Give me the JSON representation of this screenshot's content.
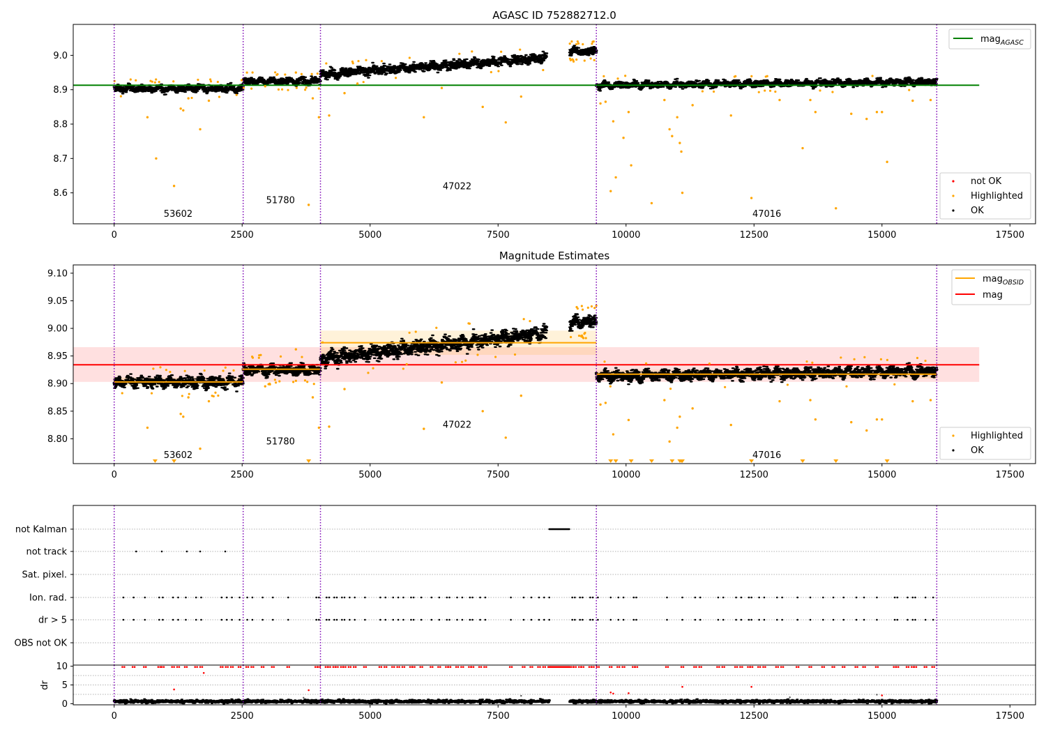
{
  "chart_data": [
    {
      "type": "scatter",
      "title": "AGASC ID 752882712.0",
      "xlim": [
        -800,
        18000
      ],
      "ylim": [
        8.51,
        9.09
      ],
      "x_ticks": [
        0,
        2500,
        5000,
        7500,
        10000,
        12500,
        15000,
        17500
      ],
      "y_ticks": [
        8.6,
        8.7,
        8.8,
        8.9,
        9.0
      ],
      "y_tick_labels": [
        "8.6",
        "8.7",
        "8.8",
        "8.9",
        "9.0"
      ],
      "obsid_boundaries": [
        0,
        2520,
        4030,
        9420,
        16070
      ],
      "obsid_labels": [
        {
          "x": 1250,
          "y": 8.53,
          "text": "53602"
        },
        {
          "x": 3250,
          "y": 8.57,
          "text": "51780"
        },
        {
          "x": 6700,
          "y": 8.61,
          "text": "47022"
        },
        {
          "x": 12750,
          "y": 8.53,
          "text": "47016"
        }
      ],
      "segments": [
        {
          "x0": 0,
          "x1": 2520,
          "mean": 8.903,
          "spread": 0.009
        },
        {
          "x0": 2520,
          "x1": 4030,
          "mean": 8.925,
          "spread": 0.009
        },
        {
          "x0": 4030,
          "x1": 8450,
          "mean_start": 8.945,
          "mean_end": 8.992,
          "spread": 0.012
        },
        {
          "x0": 8900,
          "x1": 9420,
          "mean": 9.012,
          "spread": 0.01
        },
        {
          "x0": 9420,
          "x1": 16070,
          "mean_start": 8.913,
          "mean_end": 8.923,
          "spread": 0.009
        }
      ],
      "hlines": [
        {
          "y": 8.913,
          "x0": -800,
          "x1": 16900,
          "color": "#008000",
          "legend": "mag",
          "legend_sub": "AGASC"
        }
      ],
      "highlighted_outliers": [
        [
          650,
          8.82
        ],
        [
          820,
          8.7
        ],
        [
          1170,
          8.62
        ],
        [
          1300,
          8.845
        ],
        [
          1350,
          8.84
        ],
        [
          1450,
          8.875
        ],
        [
          1680,
          8.785
        ],
        [
          1850,
          8.868
        ],
        [
          2950,
          8.91
        ],
        [
          3550,
          8.95
        ],
        [
          3800,
          8.565
        ],
        [
          3880,
          8.875
        ],
        [
          4000,
          8.82
        ],
        [
          4200,
          8.825
        ],
        [
          4500,
          8.89
        ],
        [
          6050,
          8.82
        ],
        [
          6400,
          8.905
        ],
        [
          7200,
          8.85
        ],
        [
          7650,
          8.805
        ],
        [
          7950,
          8.88
        ],
        [
          9500,
          8.86
        ],
        [
          9600,
          8.865
        ],
        [
          9700,
          8.605
        ],
        [
          9750,
          8.808
        ],
        [
          9800,
          8.645
        ],
        [
          9950,
          8.76
        ],
        [
          10050,
          8.835
        ],
        [
          10100,
          8.68
        ],
        [
          10500,
          8.57
        ],
        [
          10750,
          8.87
        ],
        [
          10850,
          8.785
        ],
        [
          10900,
          8.765
        ],
        [
          11000,
          8.82
        ],
        [
          11050,
          8.745
        ],
        [
          11080,
          8.72
        ],
        [
          11100,
          8.6
        ],
        [
          11300,
          8.855
        ],
        [
          12050,
          8.825
        ],
        [
          12450,
          8.585
        ],
        [
          13000,
          8.87
        ],
        [
          13450,
          8.73
        ],
        [
          13600,
          8.87
        ],
        [
          13700,
          8.835
        ],
        [
          14100,
          8.555
        ],
        [
          14400,
          8.83
        ],
        [
          14700,
          8.815
        ],
        [
          14900,
          8.835
        ],
        [
          15000,
          8.835
        ],
        [
          15100,
          8.69
        ],
        [
          15600,
          8.868
        ],
        [
          15950,
          8.87
        ]
      ],
      "legends": [
        {
          "entries": [
            {
              "label": "mag",
              "sub": "AGASC",
              "color": "#008000",
              "kind": "line"
            }
          ],
          "loc": "upper right"
        },
        {
          "entries": [
            {
              "label": "not OK",
              "color": "#ff0000",
              "kind": "dot"
            },
            {
              "label": "Highlighted",
              "color": "#ffa500",
              "kind": "dot"
            },
            {
              "label": "OK",
              "color": "#000000",
              "kind": "dot"
            }
          ],
          "loc": "lower right"
        }
      ]
    },
    {
      "type": "scatter",
      "title": "Magnitude Estimates",
      "xlim": [
        -800,
        18000
      ],
      "ylim": [
        8.755,
        9.115
      ],
      "x_ticks": [
        0,
        2500,
        5000,
        7500,
        10000,
        12500,
        15000,
        17500
      ],
      "y_ticks": [
        8.8,
        8.85,
        8.9,
        8.95,
        9.0,
        9.05,
        9.1
      ],
      "y_tick_labels": [
        "8.80",
        "8.85",
        "8.90",
        "8.95",
        "9.00",
        "9.05",
        "9.10"
      ],
      "obsid_boundaries": [
        0,
        2520,
        4030,
        9420,
        16070
      ],
      "obsid_labels": [
        {
          "x": 1250,
          "y": 8.765,
          "text": "53602"
        },
        {
          "x": 3250,
          "y": 8.79,
          "text": "51780"
        },
        {
          "x": 6700,
          "y": 8.82,
          "text": "47022"
        },
        {
          "x": 12750,
          "y": 8.765,
          "text": "47016"
        }
      ],
      "segments": [
        {
          "x0": 0,
          "x1": 2520,
          "mean": 8.903,
          "spread": 0.009
        },
        {
          "x0": 2520,
          "x1": 4030,
          "mean": 8.925,
          "spread": 0.009
        },
        {
          "x0": 4030,
          "x1": 8450,
          "mean_start": 8.945,
          "mean_end": 8.992,
          "spread": 0.012
        },
        {
          "x0": 8900,
          "x1": 9420,
          "mean": 9.012,
          "spread": 0.01
        },
        {
          "x0": 9420,
          "x1": 16070,
          "mean_start": 8.913,
          "mean_end": 8.923,
          "spread": 0.009
        }
      ],
      "mag_line": {
        "y": 8.934,
        "band": [
          8.903,
          8.966
        ],
        "x0": -800,
        "x1": 16900,
        "color": "#ff0000"
      },
      "obsid_means": [
        {
          "x0": 0,
          "x1": 2520,
          "y": 8.903,
          "band": [
            8.895,
            8.911
          ]
        },
        {
          "x0": 2520,
          "x1": 4030,
          "y": 8.926,
          "band": [
            8.918,
            8.934
          ]
        },
        {
          "x0": 4030,
          "x1": 9420,
          "y": 8.974,
          "band": [
            8.952,
            8.996
          ]
        },
        {
          "x0": 9420,
          "x1": 16070,
          "y": 8.917,
          "band": [
            8.909,
            8.925
          ]
        }
      ],
      "highlighted_outliers": [
        [
          650,
          8.82
        ],
        [
          1300,
          8.845
        ],
        [
          1350,
          8.84
        ],
        [
          1450,
          8.875
        ],
        [
          1680,
          8.782
        ],
        [
          1850,
          8.868
        ],
        [
          2950,
          8.895
        ],
        [
          3550,
          8.962
        ],
        [
          3880,
          8.875
        ],
        [
          4000,
          8.82
        ],
        [
          4200,
          8.822
        ],
        [
          4500,
          8.89
        ],
        [
          6050,
          8.818
        ],
        [
          6400,
          8.902
        ],
        [
          7200,
          8.85
        ],
        [
          7650,
          8.802
        ],
        [
          7950,
          8.878
        ],
        [
          9500,
          8.862
        ],
        [
          9600,
          8.865
        ],
        [
          9750,
          8.808
        ],
        [
          10050,
          8.834
        ],
        [
          10750,
          8.87
        ],
        [
          10850,
          8.795
        ],
        [
          11000,
          8.82
        ],
        [
          11050,
          8.84
        ],
        [
          11300,
          8.855
        ],
        [
          12050,
          8.825
        ],
        [
          13000,
          8.868
        ],
        [
          13600,
          8.87
        ],
        [
          13700,
          8.835
        ],
        [
          14400,
          8.83
        ],
        [
          14700,
          8.815
        ],
        [
          14900,
          8.835
        ],
        [
          15000,
          8.835
        ],
        [
          15600,
          8.868
        ],
        [
          15950,
          8.87
        ]
      ],
      "offscale_markers_x": [
        800,
        1170,
        3800,
        9700,
        9800,
        10100,
        10500,
        10900,
        11050,
        11080,
        11100,
        12450,
        13450,
        14100,
        15100
      ],
      "legends": [
        {
          "entries": [
            {
              "label": "mag",
              "sub": "OBSID",
              "color": "#ffa500",
              "kind": "line"
            },
            {
              "label": "mag",
              "color": "#ff0000",
              "kind": "line"
            }
          ],
          "loc": "upper right"
        },
        {
          "entries": [
            {
              "label": "Highlighted",
              "color": "#ffa500",
              "kind": "dot"
            },
            {
              "label": "OK",
              "color": "#000000",
              "kind": "dot"
            }
          ],
          "loc": "lower right"
        }
      ]
    },
    {
      "type": "scatter",
      "title": "",
      "xlim": [
        -800,
        18000
      ],
      "categories": [
        "not Kalman",
        "not track",
        "Sat. pixel.",
        "Ion. rad.",
        "dr > 5",
        "OBS not OK"
      ],
      "obsid_boundaries": [
        0,
        2520,
        4030,
        9420,
        16070
      ],
      "flags": {
        "not Kalman": {
          "ranges": [
            [
              8500,
              8900
            ]
          ]
        },
        "not track": {
          "x": [
            430,
            930,
            1420,
            1680,
            2170
          ]
        },
        "Sat. pixel.": {
          "x": []
        },
        "Ion. rad.": {
          "x": [
            180,
            380,
            600,
            880,
            950,
            1150,
            1250,
            1400,
            1600,
            1700,
            2100,
            2200,
            2300,
            2450,
            2600,
            2700,
            2900,
            3100,
            3400,
            3950,
            4000,
            4150,
            4200,
            4300,
            4350,
            4450,
            4500,
            4600,
            4700,
            4900,
            5200,
            5300,
            5450,
            5550,
            5650,
            5800,
            5850,
            6000,
            6200,
            6350,
            6500,
            6550,
            6700,
            6800,
            6950,
            7000,
            7150,
            7250,
            7750,
            8000,
            8150,
            8300,
            8400,
            8500,
            8950,
            9000,
            9100,
            9150,
            9300,
            9350,
            9450,
            9700,
            9850,
            9950,
            10150,
            10200,
            10800,
            11100,
            11350,
            11450,
            11800,
            11900,
            12150,
            12250,
            12400,
            12450,
            12600,
            12700,
            12950,
            13050,
            13350,
            13600,
            13850,
            14050,
            14250,
            14500,
            14650,
            14900,
            15250,
            15300,
            15500,
            15600,
            15650,
            15850,
            16000
          ]
        },
        "dr > 5": {
          "x": [
            180,
            380,
            600,
            880,
            950,
            1150,
            1250,
            1400,
            1600,
            1700,
            2100,
            2200,
            2300,
            2450,
            2600,
            2700,
            2900,
            3100,
            3400,
            3950,
            4000,
            4150,
            4200,
            4300,
            4350,
            4450,
            4500,
            4600,
            4700,
            4900,
            5200,
            5300,
            5450,
            5550,
            5650,
            5800,
            5850,
            6000,
            6200,
            6350,
            6500,
            6550,
            6700,
            6800,
            6950,
            7000,
            7150,
            7250,
            7750,
            8000,
            8150,
            8300,
            8400,
            8500,
            8950,
            9000,
            9100,
            9150,
            9300,
            9350,
            9450,
            9700,
            9850,
            9950,
            10150,
            10200,
            10800,
            11100,
            11350,
            11450,
            11800,
            11900,
            12150,
            12250,
            12400,
            12450,
            12600,
            12700,
            12950,
            13050,
            13350,
            13600,
            13850,
            14050,
            14250,
            14500,
            14650,
            14900,
            15250,
            15300,
            15500,
            15600,
            15650,
            15850,
            16000
          ]
        },
        "OBS not OK": {
          "x": []
        }
      }
    },
    {
      "type": "scatter",
      "title": "",
      "ylabel": "dr",
      "xlim": [
        -800,
        18000
      ],
      "ylim": [
        -0.3,
        10.3
      ],
      "x_ticks": [
        0,
        2500,
        5000,
        7500,
        10000,
        12500,
        15000,
        17500
      ],
      "y_ticks": [
        0,
        5,
        10
      ],
      "y_tick_labels": [
        "0",
        "5",
        "10"
      ],
      "obsid_boundaries": [
        0,
        2520,
        4030,
        9420,
        16070
      ],
      "baseline": {
        "mean": 0.6,
        "spread": 0.45
      },
      "kalman_gap": [
        8500,
        8900
      ],
      "red_points": [
        [
          1170,
          3.8
        ],
        [
          1750,
          8.2
        ],
        [
          3800,
          3.6
        ],
        [
          9700,
          3.0
        ],
        [
          9750,
          2.7
        ],
        [
          10050,
          2.8
        ],
        [
          11100,
          4.5
        ],
        [
          12450,
          4.5
        ],
        [
          15000,
          2.2
        ]
      ],
      "gray_points": [
        [
          7950,
          2.1
        ],
        [
          14900,
          2.4
        ],
        [
          3700,
          1.6
        ],
        [
          13200,
          1.7
        ]
      ]
    }
  ],
  "x_tick_labels": [
    "0",
    "2500",
    "5000",
    "7500",
    "10000",
    "12500",
    "15000",
    "17500"
  ]
}
